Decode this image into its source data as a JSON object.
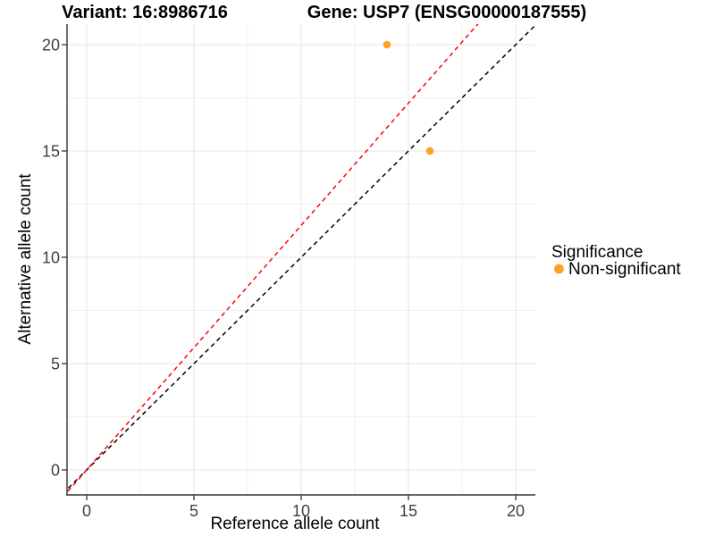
{
  "page": {
    "background": "#FFFFFF"
  },
  "chart_data": {
    "type": "scatter",
    "titles": {
      "left": "Variant: 16:8986716",
      "right": "Gene: USP7 (ENSG00000187555)"
    },
    "xlabel": "Reference allele count",
    "ylabel": "Alternative allele count",
    "x_ticks": [
      0,
      5,
      10,
      15,
      20
    ],
    "y_ticks": [
      0,
      5,
      10,
      15,
      20
    ],
    "x_minor": [
      2.5,
      7.5,
      12.5,
      17.5
    ],
    "y_minor": [
      2.5,
      7.5,
      12.5,
      17.5
    ],
    "xlim": [
      -1,
      20.9
    ],
    "ylim": [
      -1.15,
      21
    ],
    "grid": "major+minor",
    "legend_position": "right",
    "points": [
      {
        "x": 14,
        "y": 20,
        "series": "Non-significant"
      },
      {
        "x": 16,
        "y": 15,
        "series": "Non-significant"
      }
    ],
    "lines": [
      {
        "name": "identity-line",
        "slope": 1,
        "intercept": 0,
        "color": "#000000",
        "style": "dashed"
      },
      {
        "name": "expected-ratio-line",
        "slope": 1.15,
        "intercept": 0,
        "color": "#FF0000",
        "style": "dashed"
      }
    ],
    "legend": {
      "title": "Significance",
      "items": [
        {
          "label": "Non-significant",
          "color": "#FFA024"
        }
      ]
    },
    "colors": {
      "point": "#FFA024",
      "grid_major": "#E4E4E4",
      "grid_minor": "#F0F0F0",
      "axis": "#333333",
      "identity_line": "#000000",
      "ratio_line": "#FF0000"
    }
  }
}
